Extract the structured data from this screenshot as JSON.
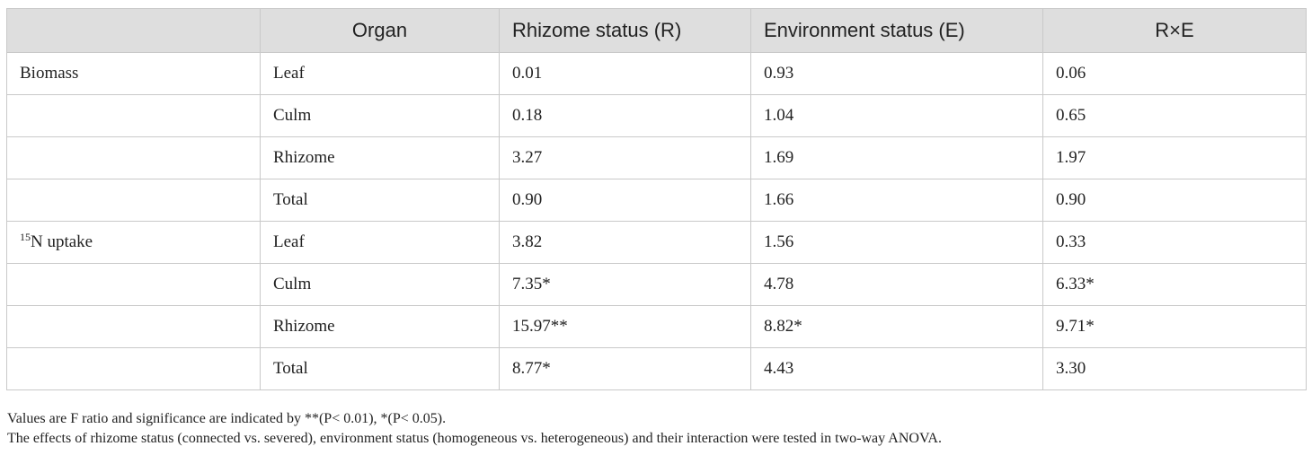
{
  "table": {
    "headers": [
      "",
      "Organ",
      "Rhizome status (R)",
      "Environment status (E)",
      "R×E"
    ],
    "rows": [
      {
        "group": "Biomass",
        "group_sup": "",
        "organ": "Leaf",
        "r": "0.01",
        "e": "0.93",
        "rxe": "0.06"
      },
      {
        "group": "",
        "group_sup": "",
        "organ": "Culm",
        "r": "0.18",
        "e": "1.04",
        "rxe": "0.65"
      },
      {
        "group": "",
        "group_sup": "",
        "organ": "Rhizome",
        "r": "3.27",
        "e": "1.69",
        "rxe": "1.97"
      },
      {
        "group": "",
        "group_sup": "",
        "organ": "Total",
        "r": "0.90",
        "e": "1.66",
        "rxe": "0.90"
      },
      {
        "group": "N uptake",
        "group_sup": "15",
        "organ": "Leaf",
        "r": "3.82",
        "e": "1.56",
        "rxe": "0.33"
      },
      {
        "group": "",
        "group_sup": "",
        "organ": "Culm",
        "r": "7.35*",
        "e": "4.78",
        "rxe": "6.33*"
      },
      {
        "group": "",
        "group_sup": "",
        "organ": "Rhizome",
        "r": "15.97**",
        "e": "8.82*",
        "rxe": "9.71*"
      },
      {
        "group": "",
        "group_sup": "",
        "organ": "Total",
        "r": "8.77*",
        "e": "4.43",
        "rxe": "3.30"
      }
    ]
  },
  "notes": [
    "Values are F ratio and significance are indicated by **(P< 0.01), *(P< 0.05).",
    "The effects of rhizome status (connected vs. severed), environment status (homogeneous vs. heterogeneous) and their interaction were tested in two-way ANOVA."
  ]
}
